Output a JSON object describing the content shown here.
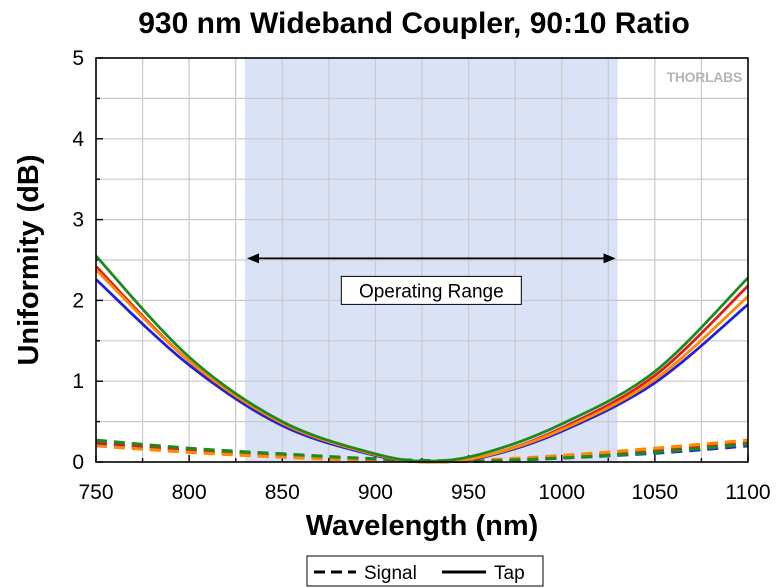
{
  "chart_data": {
    "type": "line",
    "title": "930 nm Wideband Coupler, 90:10 Ratio",
    "xlabel": "Wavelength (nm)",
    "ylabel": "Uniformity (dB)",
    "xlim": [
      750,
      1100
    ],
    "ylim": [
      0,
      5
    ],
    "x_ticks": [
      "750",
      "800",
      "850",
      "900",
      "950",
      "1000",
      "1050",
      "1100"
    ],
    "y_ticks": [
      "0",
      "1",
      "2",
      "3",
      "4",
      "5"
    ],
    "grid": true,
    "operating_range": {
      "x": [
        830,
        1030
      ],
      "y": 2.52,
      "label": "Operating Range",
      "color": "#dae3f5"
    },
    "brand": "THORLABS",
    "legend": {
      "position": "bottom",
      "entries": [
        {
          "label": "Signal",
          "style": "dashed"
        },
        {
          "label": "Tap",
          "style": "solid"
        }
      ]
    },
    "series": [
      {
        "style": "solid",
        "color": "#1f1fe0",
        "x": [
          750,
          800,
          850,
          900,
          930,
          960,
          1000,
          1050,
          1100
        ],
        "y": [
          2.26,
          1.2,
          0.45,
          0.08,
          0.0,
          0.07,
          0.38,
          0.98,
          1.95
        ]
      },
      {
        "style": "solid",
        "color": "#e41a1a",
        "x": [
          750,
          800,
          850,
          900,
          930,
          960,
          1000,
          1050,
          1100
        ],
        "y": [
          2.42,
          1.25,
          0.48,
          0.09,
          0.0,
          0.08,
          0.42,
          1.07,
          2.18
        ]
      },
      {
        "style": "solid",
        "color": "#ff8a00",
        "x": [
          750,
          800,
          850,
          900,
          930,
          960,
          1000,
          1050,
          1100
        ],
        "y": [
          2.38,
          1.25,
          0.48,
          0.09,
          0.0,
          0.08,
          0.4,
          1.02,
          2.05
        ]
      },
      {
        "style": "solid",
        "color": "#1e8a1e",
        "x": [
          750,
          800,
          850,
          900,
          930,
          960,
          1000,
          1050,
          1100
        ],
        "y": [
          2.55,
          1.3,
          0.5,
          0.1,
          0.01,
          0.12,
          0.47,
          1.12,
          2.28
        ]
      },
      {
        "style": "dashed",
        "color": "#1f1fe0",
        "x": [
          750,
          800,
          850,
          900,
          950,
          1000,
          1050,
          1100
        ],
        "y": [
          0.22,
          0.14,
          0.08,
          0.03,
          0.01,
          0.05,
          0.11,
          0.2
        ]
      },
      {
        "style": "dashed",
        "color": "#e41a1a",
        "x": [
          750,
          800,
          850,
          900,
          950,
          1000,
          1050,
          1100
        ],
        "y": [
          0.25,
          0.15,
          0.08,
          0.03,
          0.01,
          0.06,
          0.14,
          0.24
        ]
      },
      {
        "style": "dashed",
        "color": "#ff8a00",
        "x": [
          750,
          800,
          850,
          900,
          950,
          1000,
          1050,
          1100
        ],
        "y": [
          0.2,
          0.12,
          0.06,
          0.02,
          0.02,
          0.08,
          0.17,
          0.27
        ]
      },
      {
        "style": "dashed",
        "color": "#1e8a1e",
        "x": [
          750,
          800,
          850,
          900,
          950,
          1000,
          1050,
          1100
        ],
        "y": [
          0.27,
          0.17,
          0.1,
          0.04,
          0.01,
          0.05,
          0.12,
          0.22
        ]
      }
    ]
  }
}
